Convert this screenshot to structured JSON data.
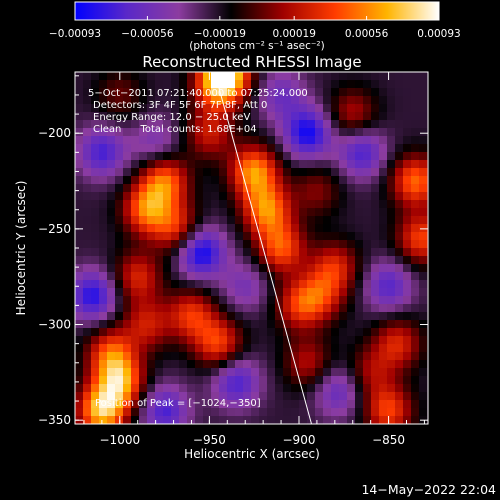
{
  "chart_data": {
    "type": "heatmap",
    "title": "Reconstructed RHESSI Image",
    "xlabel": "Heliocentric X (arcsec)",
    "ylabel": "Heliocentric Y (arcsec)",
    "xlim": [
      -1025,
      -828
    ],
    "ylim": [
      -352,
      -168
    ],
    "x_ticks": [
      {
        "value": -1000,
        "label": "−1000"
      },
      {
        "value": -950,
        "label": "−950"
      },
      {
        "value": -900,
        "label": "−900"
      },
      {
        "value": -850,
        "label": "−850"
      }
    ],
    "y_ticks": [
      {
        "value": -200,
        "label": "−200"
      },
      {
        "value": -250,
        "label": "−250"
      },
      {
        "value": -300,
        "label": "−300"
      },
      {
        "value": -350,
        "label": "−350"
      }
    ],
    "colorbar": {
      "range": [
        -0.00093,
        0.00093
      ],
      "tick_values": [
        -0.00093,
        -0.00056,
        -0.00019,
        0.00019,
        0.00056,
        0.00093
      ],
      "tick_labels": [
        "−0.00093",
        "−0.00056",
        "−0.00019",
        "0.00019",
        "0.00056",
        "0.00093"
      ],
      "units_label": "(photons cm⁻² s⁻¹ asec⁻²)",
      "colors": [
        "#0000ff",
        "#5a28c8",
        "#8c3ca0",
        "#000000",
        "#a00000",
        "#ff3c00",
        "#ffb400",
        "#ffffff"
      ]
    },
    "info_lines": [
      "5−Oct−2011 07:21:40.000 to 07:25:24.000",
      "Detectors: 3F 4F 5F 6F 7F 8F, Att 0",
      "Energy Range: 12.0 − 25.0 keV",
      "Clean      Total counts: 1.68E+04"
    ],
    "peak_label": "Position of Peak = [−1024,−350]",
    "limb_line": [
      [
        -948,
        -165
      ],
      [
        -893,
        -352
      ]
    ],
    "blobs": [
      {
        "x": -1010,
        "y": -345,
        "value": 0.00093
      },
      {
        "x": -1000,
        "y": -330,
        "value": 0.0008
      },
      {
        "x": -1005,
        "y": -315,
        "value": 0.0006
      },
      {
        "x": -985,
        "y": -240,
        "value": 0.0007
      },
      {
        "x": -975,
        "y": -225,
        "value": 0.0007
      },
      {
        "x": -968,
        "y": -250,
        "value": 0.00055
      },
      {
        "x": -990,
        "y": -275,
        "value": 0.0005
      },
      {
        "x": -985,
        "y": -300,
        "value": 0.00045
      },
      {
        "x": -960,
        "y": -295,
        "value": 0.00055
      },
      {
        "x": -945,
        "y": -310,
        "value": 0.0006
      },
      {
        "x": -950,
        "y": -200,
        "value": 0.00045
      },
      {
        "x": -945,
        "y": -175,
        "value": 0.0007
      },
      {
        "x": -940,
        "y": -168,
        "value": 0.0008
      },
      {
        "x": -925,
        "y": -220,
        "value": 0.0008
      },
      {
        "x": -918,
        "y": -240,
        "value": 0.00075
      },
      {
        "x": -910,
        "y": -260,
        "value": 0.00065
      },
      {
        "x": -900,
        "y": -290,
        "value": 0.0005
      },
      {
        "x": -895,
        "y": -320,
        "value": 0.0004
      },
      {
        "x": -870,
        "y": -190,
        "value": 0.0004
      },
      {
        "x": -880,
        "y": -270,
        "value": 0.0005
      },
      {
        "x": -888,
        "y": -285,
        "value": 0.00045
      },
      {
        "x": -890,
        "y": -230,
        "value": 0.0003
      },
      {
        "x": -835,
        "y": -225,
        "value": 0.0007
      },
      {
        "x": -832,
        "y": -255,
        "value": 0.0006
      },
      {
        "x": -845,
        "y": -310,
        "value": 0.0005
      },
      {
        "x": -850,
        "y": -345,
        "value": 0.0006
      },
      {
        "x": -860,
        "y": -325,
        "value": 0.00035
      },
      {
        "x": -1000,
        "y": -180,
        "value": 0.00025
      },
      {
        "x": -955,
        "y": -262,
        "value": -0.0007
      },
      {
        "x": -1015,
        "y": -285,
        "value": -0.0006
      },
      {
        "x": -895,
        "y": -200,
        "value": -0.00065
      },
      {
        "x": -935,
        "y": -330,
        "value": -0.0005
      },
      {
        "x": -850,
        "y": -280,
        "value": -0.00045
      },
      {
        "x": -1010,
        "y": -210,
        "value": -0.0005
      },
      {
        "x": -975,
        "y": -345,
        "value": -0.0005
      },
      {
        "x": -865,
        "y": -210,
        "value": -0.0005
      },
      {
        "x": -910,
        "y": -180,
        "value": -0.00035
      },
      {
        "x": -878,
        "y": -335,
        "value": -0.0004
      },
      {
        "x": -980,
        "y": -205,
        "value": -0.0003
      },
      {
        "x": -930,
        "y": -280,
        "value": -0.0003
      }
    ]
  },
  "footer": {
    "timestamp": "14−May−2022 22:04"
  }
}
